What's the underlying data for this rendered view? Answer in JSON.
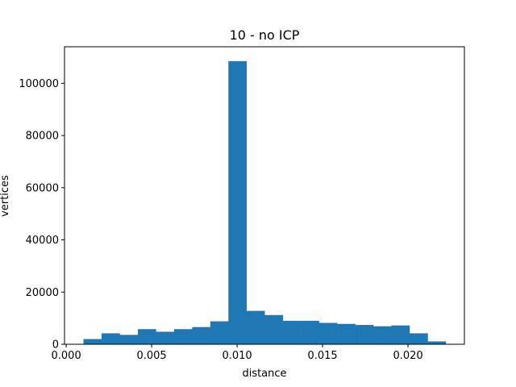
{
  "chart_data": {
    "type": "bar",
    "title": "10 - no ICP",
    "xlabel": "distance",
    "ylabel": "vertices",
    "xlim": [
      -0.0001,
      0.0233
    ],
    "ylim": [
      0,
      114000
    ],
    "xticks": [
      0.0,
      0.005,
      0.01,
      0.015,
      0.02
    ],
    "xtick_labels": [
      "0.000",
      "0.005",
      "0.010",
      "0.015",
      "0.020"
    ],
    "yticks": [
      0,
      20000,
      40000,
      60000,
      80000,
      100000
    ],
    "ytick_labels": [
      "0",
      "20000",
      "40000",
      "60000",
      "80000",
      "100000"
    ],
    "bar_color": "#1f77b4",
    "bin_edges": [
      0.00101,
      0.00207,
      0.00313,
      0.00419,
      0.00525,
      0.00631,
      0.00737,
      0.00843,
      0.00949,
      0.01055,
      0.01161,
      0.01267,
      0.01373,
      0.01479,
      0.01585,
      0.01691,
      0.01797,
      0.01903,
      0.02009,
      0.02115,
      0.02221
    ],
    "values": [
      2000,
      4200,
      3600,
      5800,
      4800,
      5800,
      6600,
      8800,
      108500,
      12800,
      11200,
      9000,
      9000,
      8200,
      7800,
      7400,
      6900,
      7200,
      4200,
      1100
    ],
    "grid": false,
    "legend": "none"
  }
}
